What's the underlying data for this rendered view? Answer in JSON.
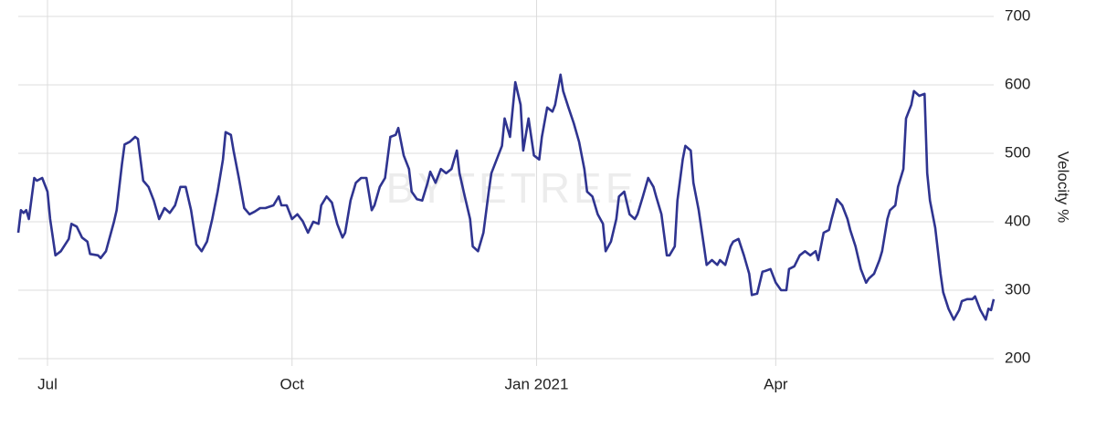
{
  "chart_data": {
    "type": "line",
    "watermark": "BYTETREE",
    "y_label": "Velocity %",
    "x": [
      -11,
      -10,
      -9,
      -8,
      -7,
      -5,
      -4,
      -2,
      0,
      1,
      3,
      5,
      8,
      9,
      11,
      13,
      15,
      16,
      19,
      20,
      22,
      25,
      26,
      28,
      29,
      31,
      33,
      34,
      36,
      38,
      40,
      42,
      44,
      46,
      48,
      50,
      52,
      54,
      56,
      58,
      60,
      62,
      64,
      66,
      67,
      69,
      70,
      72,
      74,
      76,
      78,
      80,
      82,
      85,
      87,
      88,
      90,
      92,
      94,
      96,
      98,
      100,
      102,
      103,
      105,
      107,
      109,
      111,
      112,
      114,
      116,
      118,
      120,
      122,
      123,
      125,
      127,
      129,
      131,
      132,
      134,
      136,
      137,
      139,
      141,
      143,
      144,
      146,
      148,
      150,
      152,
      154,
      155,
      157,
      159,
      160,
      162,
      164,
      166,
      167,
      169,
      171,
      172,
      174,
      176,
      178,
      179,
      181,
      183,
      185,
      186,
      188,
      190,
      191,
      193,
      194,
      196,
      198,
      200,
      202,
      203,
      205,
      207,
      209,
      210,
      212,
      214,
      215,
      217,
      219,
      221,
      222,
      224,
      226,
      228,
      229,
      231,
      233,
      234,
      236,
      237,
      239,
      240,
      242,
      243,
      245,
      247,
      248,
      250,
      252,
      253,
      255,
      257,
      258,
      260,
      262,
      264,
      265,
      267,
      269,
      270,
      272,
      274,
      276,
      278,
      279,
      281,
      283,
      285,
      287,
      289,
      290,
      292,
      294,
      295,
      297,
      299,
      301,
      302,
      304,
      306,
      308,
      309,
      311,
      313,
      314,
      316,
      317,
      319,
      320,
      322,
      323,
      325,
      326,
      328,
      330,
      331,
      332,
      334,
      336,
      337,
      339,
      341,
      343,
      344,
      346,
      348,
      349,
      351,
      353,
      354,
      355,
      356
    ],
    "series": [
      {
        "color": "#2f3490",
        "values": [
          384,
          417,
          413,
          417,
          404,
          464,
          460,
          464,
          444,
          404,
          351,
          357,
          375,
          397,
          393,
          377,
          371,
          353,
          351,
          347,
          357,
          400,
          417,
          484,
          513,
          517,
          524,
          521,
          460,
          451,
          431,
          404,
          420,
          413,
          424,
          451,
          451,
          417,
          367,
          357,
          371,
          404,
          444,
          491,
          531,
          527,
          504,
          464,
          420,
          411,
          415,
          420,
          420,
          424,
          437,
          424,
          424,
          404,
          411,
          401,
          384,
          400,
          397,
          424,
          437,
          428,
          397,
          377,
          384,
          431,
          457,
          464,
          464,
          417,
          424,
          451,
          464,
          524,
          527,
          537,
          497,
          477,
          444,
          433,
          431,
          457,
          473,
          457,
          477,
          471,
          477,
          504,
          471,
          437,
          404,
          364,
          357,
          384,
          444,
          471,
          491,
          511,
          551,
          524,
          604,
          571,
          504,
          551,
          497,
          491,
          524,
          567,
          561,
          571,
          615,
          591,
          567,
          544,
          517,
          477,
          444,
          437,
          411,
          397,
          357,
          371,
          404,
          437,
          444,
          411,
          404,
          411,
          437,
          464,
          451,
          437,
          411,
          351,
          351,
          364,
          431,
          491,
          511,
          504,
          457,
          417,
          364,
          337,
          344,
          337,
          344,
          337,
          364,
          371,
          375,
          351,
          324,
          293,
          295,
          327,
          328,
          331,
          311,
          300,
          300,
          331,
          335,
          351,
          357,
          351,
          357,
          344,
          384,
          388,
          404,
          433,
          424,
          404,
          388,
          364,
          331,
          311,
          317,
          324,
          344,
          357,
          404,
          417,
          424,
          451,
          477,
          551,
          571,
          591,
          584,
          587,
          471,
          431,
          391,
          324,
          297,
          273,
          257,
          271,
          284,
          287,
          287,
          291,
          271,
          257,
          273,
          271,
          287
        ]
      }
    ],
    "xlim": [
      -11,
      356
    ],
    "xticks": [
      {
        "value": 0,
        "label": "Jul"
      },
      {
        "value": 92,
        "label": "Oct"
      },
      {
        "value": 184,
        "label": "Jan 2021"
      },
      {
        "value": 274,
        "label": "Apr"
      }
    ],
    "ylim": [
      200,
      700
    ],
    "yticks": [
      200,
      300,
      400,
      500,
      600,
      700
    ],
    "grid": true
  }
}
